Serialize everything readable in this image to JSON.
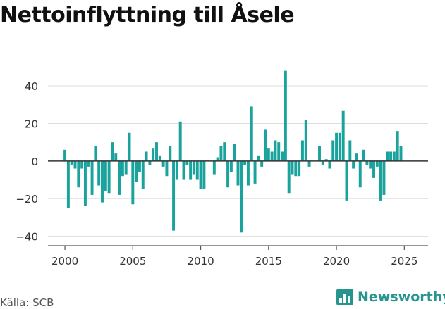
{
  "title": "Nettoinflyttning till Åsele",
  "source": "Källa: SCB",
  "brand": {
    "name": "Newsworthy",
    "icon": "newsworthy-logo-icon",
    "color": "#26948f"
  },
  "colors": {
    "bar": "#1aa39c",
    "zero_line": "#333333",
    "grid": "#dddddd",
    "axis": "#555555"
  },
  "chart_data": {
    "type": "bar",
    "title": "Nettoinflyttning till Åsele",
    "xlabel": "",
    "ylabel": "",
    "granularity": "quarterly",
    "x_start": 2000.0,
    "x_step": 0.25,
    "xlim": [
      1998.75,
      2026.75
    ],
    "ylim": [
      -45,
      52
    ],
    "xticks": [
      2000,
      2005,
      2010,
      2015,
      2020,
      2025
    ],
    "yticks": [
      -40,
      -20,
      0,
      20,
      40
    ],
    "ytick_labels": [
      "−40",
      "−20",
      "0",
      "20",
      "40"
    ],
    "grid": true,
    "values": [
      6,
      -25,
      -2,
      -4,
      -14,
      -4,
      -24,
      -3,
      -18,
      8,
      -13,
      -22,
      -16,
      -17,
      10,
      4,
      -18,
      -8,
      -7,
      15,
      -23,
      -11,
      -6,
      -15,
      5,
      -2,
      7,
      10,
      3,
      -3,
      -8,
      8,
      -37,
      -10,
      21,
      -10,
      -2,
      -10,
      -7,
      -10,
      -15,
      -15,
      0,
      0,
      -7,
      2,
      8,
      10,
      -14,
      -6,
      9,
      -13,
      -38,
      -2,
      -13,
      29,
      -12,
      3,
      -3,
      17,
      7,
      5,
      11,
      10,
      5,
      48,
      -17,
      -7,
      -8,
      -8,
      11,
      22,
      -3,
      0,
      0,
      8,
      -2,
      1,
      -4,
      11,
      15,
      15,
      27,
      -21,
      11,
      -4,
      4,
      -14,
      6,
      -2,
      -4,
      -9,
      -3,
      -21,
      -18,
      5,
      5,
      5,
      16,
      8
    ]
  }
}
